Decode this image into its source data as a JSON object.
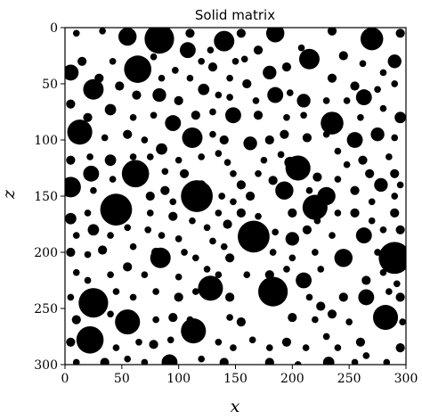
{
  "chart_data": {
    "type": "heatmap",
    "title": "Solid matrix",
    "xlabel": "x",
    "ylabel": "z",
    "xlim": [
      0,
      300
    ],
    "ylim": [
      300,
      0
    ],
    "xticks": [
      0,
      50,
      100,
      150,
      200,
      250,
      300
    ],
    "yticks": [
      0,
      50,
      100,
      150,
      200,
      250,
      300
    ],
    "grid": false,
    "colors": {
      "solid": "#000000",
      "pore": "#ffffff",
      "frame": "#000000"
    },
    "grains": [
      {
        "x": 10,
        "z": 5,
        "r": 3
      },
      {
        "x": 33,
        "z": 3,
        "r": 3
      },
      {
        "x": 55,
        "z": 8,
        "r": 8
      },
      {
        "x": 83,
        "z": 10,
        "r": 13
      },
      {
        "x": 110,
        "z": 5,
        "r": 4
      },
      {
        "x": 140,
        "z": 12,
        "r": 9
      },
      {
        "x": 155,
        "z": 5,
        "r": 4
      },
      {
        "x": 185,
        "z": 5,
        "r": 8
      },
      {
        "x": 235,
        "z": 3,
        "r": 4
      },
      {
        "x": 270,
        "z": 10,
        "r": 10
      },
      {
        "x": 295,
        "z": 5,
        "r": 4
      },
      {
        "x": 5,
        "z": 40,
        "r": 7
      },
      {
        "x": 15,
        "z": 30,
        "r": 4
      },
      {
        "x": 30,
        "z": 45,
        "r": 4
      },
      {
        "x": 42,
        "z": 30,
        "r": 3
      },
      {
        "x": 60,
        "z": 35,
        "r": 5
      },
      {
        "x": 78,
        "z": 26,
        "r": 3
      },
      {
        "x": 108,
        "z": 20,
        "r": 7
      },
      {
        "x": 128,
        "z": 20,
        "r": 3
      },
      {
        "x": 158,
        "z": 28,
        "r": 3
      },
      {
        "x": 170,
        "z": 20,
        "r": 4
      },
      {
        "x": 208,
        "z": 18,
        "r": 3
      },
      {
        "x": 215,
        "z": 28,
        "r": 9
      },
      {
        "x": 245,
        "z": 25,
        "r": 4
      },
      {
        "x": 262,
        "z": 32,
        "r": 3
      },
      {
        "x": 290,
        "z": 30,
        "r": 6
      },
      {
        "x": 25,
        "z": 55,
        "r": 9
      },
      {
        "x": 48,
        "z": 52,
        "r": 4
      },
      {
        "x": 63,
        "z": 60,
        "r": 4
      },
      {
        "x": 85,
        "z": 45,
        "r": 3
      },
      {
        "x": 97,
        "z": 38,
        "r": 3
      },
      {
        "x": 110,
        "z": 45,
        "r": 3
      },
      {
        "x": 120,
        "z": 30,
        "r": 3
      },
      {
        "x": 130,
        "z": 35,
        "r": 4
      },
      {
        "x": 145,
        "z": 45,
        "r": 3
      },
      {
        "x": 150,
        "z": 30,
        "r": 3
      },
      {
        "x": 180,
        "z": 40,
        "r": 6
      },
      {
        "x": 195,
        "z": 35,
        "r": 4
      },
      {
        "x": 198,
        "z": 58,
        "r": 3
      },
      {
        "x": 235,
        "z": 45,
        "r": 4
      },
      {
        "x": 255,
        "z": 52,
        "r": 4
      },
      {
        "x": 275,
        "z": 55,
        "r": 3
      },
      {
        "x": 290,
        "z": 50,
        "r": 3
      },
      {
        "x": 64,
        "z": 37,
        "r": 12
      },
      {
        "x": 83,
        "z": 60,
        "r": 6
      },
      {
        "x": 100,
        "z": 65,
        "r": 4
      },
      {
        "x": 122,
        "z": 55,
        "r": 5
      },
      {
        "x": 135,
        "z": 60,
        "r": 3
      },
      {
        "x": 145,
        "z": 62,
        "r": 3
      },
      {
        "x": 160,
        "z": 50,
        "r": 4
      },
      {
        "x": 168,
        "z": 65,
        "r": 3
      },
      {
        "x": 185,
        "z": 60,
        "r": 7
      },
      {
        "x": 210,
        "z": 65,
        "r": 6
      },
      {
        "x": 230,
        "z": 65,
        "r": 3
      },
      {
        "x": 248,
        "z": 65,
        "r": 3
      },
      {
        "x": 263,
        "z": 62,
        "r": 7
      },
      {
        "x": 280,
        "z": 40,
        "r": 3
      },
      {
        "x": 5,
        "z": 68,
        "r": 4
      },
      {
        "x": 20,
        "z": 80,
        "r": 4
      },
      {
        "x": 40,
        "z": 73,
        "r": 5
      },
      {
        "x": 60,
        "z": 80,
        "r": 3
      },
      {
        "x": 78,
        "z": 78,
        "r": 3
      },
      {
        "x": 95,
        "z": 85,
        "r": 7
      },
      {
        "x": 115,
        "z": 78,
        "r": 4
      },
      {
        "x": 130,
        "z": 75,
        "r": 3
      },
      {
        "x": 148,
        "z": 78,
        "r": 7
      },
      {
        "x": 170,
        "z": 78,
        "r": 4
      },
      {
        "x": 195,
        "z": 80,
        "r": 3
      },
      {
        "x": 210,
        "z": 78,
        "r": 3
      },
      {
        "x": 235,
        "z": 85,
        "r": 10
      },
      {
        "x": 260,
        "z": 80,
        "r": 3
      },
      {
        "x": 280,
        "z": 72,
        "r": 3
      },
      {
        "x": 295,
        "z": 80,
        "r": 5
      },
      {
        "x": 13,
        "z": 93,
        "r": 11
      },
      {
        "x": 35,
        "z": 98,
        "r": 3
      },
      {
        "x": 55,
        "z": 95,
        "r": 4
      },
      {
        "x": 70,
        "z": 100,
        "r": 3
      },
      {
        "x": 85,
        "z": 108,
        "r": 5
      },
      {
        "x": 112,
        "z": 98,
        "r": 9
      },
      {
        "x": 130,
        "z": 95,
        "r": 3
      },
      {
        "x": 140,
        "z": 100,
        "r": 4
      },
      {
        "x": 163,
        "z": 103,
        "r": 6
      },
      {
        "x": 180,
        "z": 100,
        "r": 4
      },
      {
        "x": 193,
        "z": 95,
        "r": 4
      },
      {
        "x": 213,
        "z": 98,
        "r": 4
      },
      {
        "x": 230,
        "z": 95,
        "r": 3
      },
      {
        "x": 255,
        "z": 100,
        "r": 7
      },
      {
        "x": 275,
        "z": 95,
        "r": 6
      },
      {
        "x": 290,
        "z": 98,
        "r": 3
      },
      {
        "x": 5,
        "z": 118,
        "r": 4
      },
      {
        "x": 22,
        "z": 115,
        "r": 3
      },
      {
        "x": 40,
        "z": 118,
        "r": 5
      },
      {
        "x": 60,
        "z": 115,
        "r": 3
      },
      {
        "x": 75,
        "z": 115,
        "r": 3
      },
      {
        "x": 100,
        "z": 118,
        "r": 3
      },
      {
        "x": 120,
        "z": 115,
        "r": 3
      },
      {
        "x": 135,
        "z": 112,
        "r": 3
      },
      {
        "x": 143,
        "z": 120,
        "r": 3
      },
      {
        "x": 175,
        "z": 118,
        "r": 3
      },
      {
        "x": 190,
        "z": 113,
        "r": 3
      },
      {
        "x": 198,
        "z": 120,
        "r": 5
      },
      {
        "x": 240,
        "z": 110,
        "r": 3
      },
      {
        "x": 248,
        "z": 122,
        "r": 3
      },
      {
        "x": 262,
        "z": 118,
        "r": 4
      },
      {
        "x": 285,
        "z": 115,
        "r": 3
      },
      {
        "x": 23,
        "z": 130,
        "r": 7
      },
      {
        "x": 42,
        "z": 135,
        "r": 3
      },
      {
        "x": 62,
        "z": 130,
        "r": 12
      },
      {
        "x": 88,
        "z": 128,
        "r": 3
      },
      {
        "x": 105,
        "z": 130,
        "r": 4
      },
      {
        "x": 120,
        "z": 140,
        "r": 4
      },
      {
        "x": 148,
        "z": 130,
        "r": 3
      },
      {
        "x": 155,
        "z": 140,
        "r": 4
      },
      {
        "x": 170,
        "z": 130,
        "r": 3
      },
      {
        "x": 183,
        "z": 136,
        "r": 4
      },
      {
        "x": 212,
        "z": 128,
        "r": 3
      },
      {
        "x": 222,
        "z": 133,
        "r": 4
      },
      {
        "x": 240,
        "z": 135,
        "r": 3
      },
      {
        "x": 268,
        "z": 130,
        "r": 4
      },
      {
        "x": 290,
        "z": 130,
        "r": 4
      },
      {
        "x": 205,
        "z": 125,
        "r": 11
      },
      {
        "x": 278,
        "z": 140,
        "r": 6
      },
      {
        "x": 295,
        "z": 140,
        "r": 3
      },
      {
        "x": 5,
        "z": 142,
        "r": 9
      },
      {
        "x": 25,
        "z": 145,
        "r": 3
      },
      {
        "x": 40,
        "z": 155,
        "r": 3
      },
      {
        "x": 75,
        "z": 150,
        "r": 4
      },
      {
        "x": 88,
        "z": 145,
        "r": 4
      },
      {
        "x": 95,
        "z": 155,
        "r": 3
      },
      {
        "x": 138,
        "z": 150,
        "r": 3
      },
      {
        "x": 148,
        "z": 155,
        "r": 3
      },
      {
        "x": 163,
        "z": 150,
        "r": 4
      },
      {
        "x": 193,
        "z": 145,
        "r": 8
      },
      {
        "x": 215,
        "z": 145,
        "r": 3
      },
      {
        "x": 230,
        "z": 150,
        "r": 8
      },
      {
        "x": 255,
        "z": 145,
        "r": 4
      },
      {
        "x": 270,
        "z": 155,
        "r": 3
      },
      {
        "x": 290,
        "z": 150,
        "r": 3
      },
      {
        "x": 116,
        "z": 150,
        "r": 14
      },
      {
        "x": 5,
        "z": 170,
        "r": 5
      },
      {
        "x": 20,
        "z": 165,
        "r": 3
      },
      {
        "x": 45,
        "z": 162,
        "r": 14
      },
      {
        "x": 75,
        "z": 165,
        "r": 3
      },
      {
        "x": 95,
        "z": 168,
        "r": 4
      },
      {
        "x": 112,
        "z": 172,
        "r": 3
      },
      {
        "x": 135,
        "z": 165,
        "r": 3
      },
      {
        "x": 143,
        "z": 175,
        "r": 4
      },
      {
        "x": 155,
        "z": 165,
        "r": 4
      },
      {
        "x": 170,
        "z": 168,
        "r": 3
      },
      {
        "x": 200,
        "z": 165,
        "r": 4
      },
      {
        "x": 222,
        "z": 172,
        "r": 3
      },
      {
        "x": 240,
        "z": 165,
        "r": 3
      },
      {
        "x": 255,
        "z": 165,
        "r": 4
      },
      {
        "x": 270,
        "z": 172,
        "r": 3
      },
      {
        "x": 290,
        "z": 165,
        "r": 4
      },
      {
        "x": 220,
        "z": 160,
        "r": 11
      },
      {
        "x": 10,
        "z": 185,
        "r": 3
      },
      {
        "x": 25,
        "z": 180,
        "r": 5
      },
      {
        "x": 40,
        "z": 185,
        "r": 3
      },
      {
        "x": 55,
        "z": 178,
        "r": 3
      },
      {
        "x": 73,
        "z": 180,
        "r": 3
      },
      {
        "x": 85,
        "z": 185,
        "r": 3
      },
      {
        "x": 100,
        "z": 188,
        "r": 3
      },
      {
        "x": 125,
        "z": 178,
        "r": 3
      },
      {
        "x": 130,
        "z": 190,
        "r": 3
      },
      {
        "x": 163,
        "z": 180,
        "r": 3
      },
      {
        "x": 185,
        "z": 182,
        "r": 3
      },
      {
        "x": 200,
        "z": 188,
        "r": 6
      },
      {
        "x": 213,
        "z": 180,
        "r": 4
      },
      {
        "x": 235,
        "z": 185,
        "r": 3
      },
      {
        "x": 263,
        "z": 185,
        "r": 7
      },
      {
        "x": 280,
        "z": 180,
        "r": 3
      },
      {
        "x": 295,
        "z": 180,
        "r": 4
      },
      {
        "x": 166,
        "z": 186,
        "r": 14
      },
      {
        "x": 5,
        "z": 200,
        "r": 4
      },
      {
        "x": 20,
        "z": 202,
        "r": 3
      },
      {
        "x": 33,
        "z": 198,
        "r": 4
      },
      {
        "x": 60,
        "z": 195,
        "r": 3
      },
      {
        "x": 80,
        "z": 200,
        "r": 4
      },
      {
        "x": 105,
        "z": 200,
        "r": 3
      },
      {
        "x": 115,
        "z": 205,
        "r": 3
      },
      {
        "x": 140,
        "z": 195,
        "r": 3
      },
      {
        "x": 145,
        "z": 205,
        "r": 4
      },
      {
        "x": 183,
        "z": 200,
        "r": 3
      },
      {
        "x": 200,
        "z": 205,
        "r": 3
      },
      {
        "x": 220,
        "z": 200,
        "r": 3
      },
      {
        "x": 245,
        "z": 205,
        "r": 8
      },
      {
        "x": 275,
        "z": 200,
        "r": 3
      },
      {
        "x": 290,
        "z": 205,
        "r": 14
      },
      {
        "x": 84,
        "z": 205,
        "r": 9
      },
      {
        "x": 10,
        "z": 218,
        "r": 3
      },
      {
        "x": 20,
        "z": 225,
        "r": 3
      },
      {
        "x": 40,
        "z": 220,
        "r": 3
      },
      {
        "x": 55,
        "z": 213,
        "r": 4
      },
      {
        "x": 70,
        "z": 220,
        "r": 3
      },
      {
        "x": 100,
        "z": 222,
        "r": 3
      },
      {
        "x": 125,
        "z": 215,
        "r": 3
      },
      {
        "x": 135,
        "z": 220,
        "r": 3
      },
      {
        "x": 160,
        "z": 220,
        "r": 3
      },
      {
        "x": 180,
        "z": 220,
        "r": 4
      },
      {
        "x": 195,
        "z": 215,
        "r": 3
      },
      {
        "x": 210,
        "z": 225,
        "r": 7
      },
      {
        "x": 225,
        "z": 215,
        "r": 3
      },
      {
        "x": 265,
        "z": 225,
        "r": 4
      },
      {
        "x": 280,
        "z": 218,
        "r": 3
      },
      {
        "x": 292,
        "z": 228,
        "r": 3
      },
      {
        "x": 5,
        "z": 240,
        "r": 3
      },
      {
        "x": 25,
        "z": 245,
        "r": 13
      },
      {
        "x": 45,
        "z": 235,
        "r": 3
      },
      {
        "x": 60,
        "z": 240,
        "r": 3
      },
      {
        "x": 80,
        "z": 235,
        "r": 3
      },
      {
        "x": 100,
        "z": 240,
        "r": 4
      },
      {
        "x": 115,
        "z": 235,
        "r": 3
      },
      {
        "x": 128,
        "z": 232,
        "r": 11
      },
      {
        "x": 145,
        "z": 240,
        "r": 4
      },
      {
        "x": 175,
        "z": 240,
        "r": 3
      },
      {
        "x": 183,
        "z": 235,
        "r": 13
      },
      {
        "x": 215,
        "z": 240,
        "r": 3
      },
      {
        "x": 225,
        "z": 248,
        "r": 4
      },
      {
        "x": 245,
        "z": 240,
        "r": 4
      },
      {
        "x": 265,
        "z": 240,
        "r": 7
      },
      {
        "x": 285,
        "z": 235,
        "r": 3
      },
      {
        "x": 295,
        "z": 240,
        "r": 4
      },
      {
        "x": 10,
        "z": 260,
        "r": 4
      },
      {
        "x": 40,
        "z": 255,
        "r": 3
      },
      {
        "x": 55,
        "z": 262,
        "r": 11
      },
      {
        "x": 80,
        "z": 260,
        "r": 3
      },
      {
        "x": 95,
        "z": 258,
        "r": 4
      },
      {
        "x": 110,
        "z": 260,
        "r": 3
      },
      {
        "x": 145,
        "z": 258,
        "r": 3
      },
      {
        "x": 155,
        "z": 262,
        "r": 4
      },
      {
        "x": 200,
        "z": 258,
        "r": 4
      },
      {
        "x": 220,
        "z": 260,
        "r": 3
      },
      {
        "x": 235,
        "z": 255,
        "r": 4
      },
      {
        "x": 250,
        "z": 262,
        "r": 3
      },
      {
        "x": 282,
        "z": 258,
        "r": 11
      },
      {
        "x": 297,
        "z": 262,
        "r": 3
      },
      {
        "x": 5,
        "z": 280,
        "r": 4
      },
      {
        "x": 22,
        "z": 278,
        "r": 12
      },
      {
        "x": 45,
        "z": 285,
        "r": 3
      },
      {
        "x": 65,
        "z": 280,
        "r": 3
      },
      {
        "x": 78,
        "z": 282,
        "r": 4
      },
      {
        "x": 93,
        "z": 278,
        "r": 3
      },
      {
        "x": 113,
        "z": 270,
        "r": 11
      },
      {
        "x": 135,
        "z": 280,
        "r": 3
      },
      {
        "x": 148,
        "z": 285,
        "r": 3
      },
      {
        "x": 165,
        "z": 278,
        "r": 3
      },
      {
        "x": 180,
        "z": 285,
        "r": 3
      },
      {
        "x": 195,
        "z": 280,
        "r": 4
      },
      {
        "x": 212,
        "z": 285,
        "r": 3
      },
      {
        "x": 230,
        "z": 275,
        "r": 3
      },
      {
        "x": 240,
        "z": 285,
        "r": 3
      },
      {
        "x": 260,
        "z": 280,
        "r": 4
      },
      {
        "x": 295,
        "z": 285,
        "r": 4
      },
      {
        "x": 10,
        "z": 298,
        "r": 3
      },
      {
        "x": 35,
        "z": 298,
        "r": 4
      },
      {
        "x": 55,
        "z": 295,
        "r": 3
      },
      {
        "x": 70,
        "z": 298,
        "r": 3
      },
      {
        "x": 92,
        "z": 298,
        "r": 7
      },
      {
        "x": 120,
        "z": 295,
        "r": 3
      },
      {
        "x": 140,
        "z": 298,
        "r": 4
      },
      {
        "x": 180,
        "z": 298,
        "r": 4
      },
      {
        "x": 205,
        "z": 300,
        "r": 3
      },
      {
        "x": 232,
        "z": 298,
        "r": 5
      },
      {
        "x": 255,
        "z": 298,
        "r": 3
      },
      {
        "x": 265,
        "z": 292,
        "r": 3
      },
      {
        "x": 283,
        "z": 298,
        "r": 3
      }
    ]
  }
}
